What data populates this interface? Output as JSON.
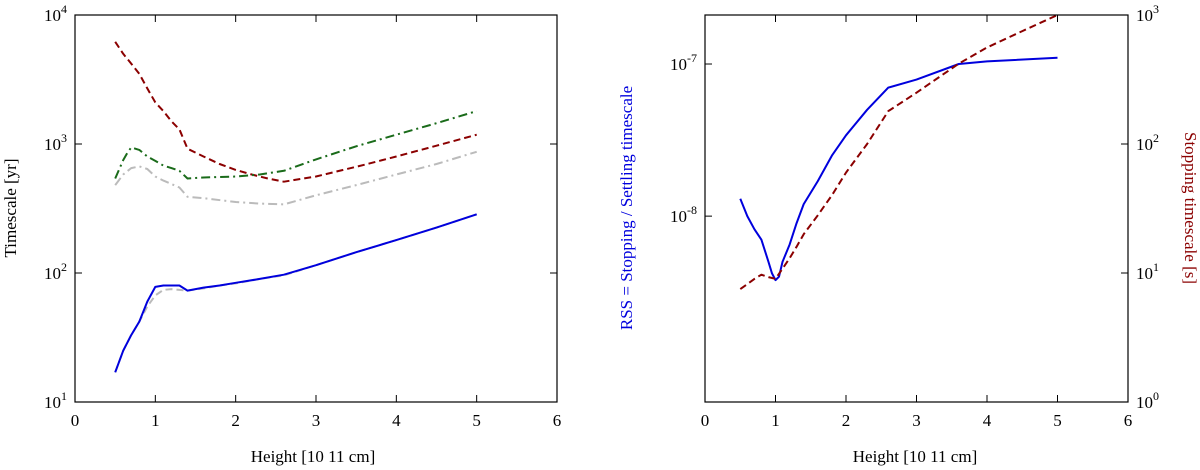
{
  "chart_data": [
    {
      "type": "line",
      "title": "",
      "xlabel": "Height [10 11 cm]",
      "ylabel": "Timescale [yr]",
      "xlim": [
        0,
        6
      ],
      "ylim": [
        10,
        10000
      ],
      "yscale": "log",
      "x_ticks": [
        "0",
        "1",
        "2",
        "3",
        "4",
        "5",
        "6"
      ],
      "y_ticks": [
        {
          "base": "10",
          "exp": "1",
          "value": 10
        },
        {
          "base": "10",
          "exp": "2",
          "value": 100
        },
        {
          "base": "10",
          "exp": "3",
          "value": 1000
        },
        {
          "base": "10",
          "exp": "4",
          "value": 10000
        }
      ],
      "grid": false,
      "series": [
        {
          "style": "dashed",
          "color": "#8b0000",
          "points": [
            [
              0.5,
              6200
            ],
            [
              0.6,
              5000
            ],
            [
              0.7,
              4200
            ],
            [
              0.8,
              3500
            ],
            [
              0.9,
              2700
            ],
            [
              1.0,
              2100
            ],
            [
              1.1,
              1800
            ],
            [
              1.2,
              1500
            ],
            [
              1.3,
              1300
            ],
            [
              1.4,
              920
            ],
            [
              1.6,
              800
            ],
            [
              1.8,
              700
            ],
            [
              2.0,
              630
            ],
            [
              2.2,
              580
            ],
            [
              2.4,
              540
            ],
            [
              2.6,
              510
            ],
            [
              3.0,
              560
            ],
            [
              3.6,
              690
            ],
            [
              4.0,
              800
            ],
            [
              4.5,
              970
            ],
            [
              5.0,
              1180
            ]
          ]
        },
        {
          "style": "dashdot",
          "color": "#1a6b1a",
          "points": [
            [
              0.5,
              540
            ],
            [
              0.6,
              750
            ],
            [
              0.65,
              850
            ],
            [
              0.7,
              940
            ],
            [
              0.8,
              900
            ],
            [
              0.9,
              800
            ],
            [
              1.0,
              740
            ],
            [
              1.1,
              680
            ],
            [
              1.2,
              650
            ],
            [
              1.3,
              620
            ],
            [
              1.4,
              540
            ],
            [
              1.6,
              550
            ],
            [
              2.0,
              560
            ],
            [
              2.3,
              580
            ],
            [
              2.6,
              620
            ],
            [
              3.0,
              760
            ],
            [
              3.5,
              960
            ],
            [
              4.0,
              1180
            ],
            [
              4.5,
              1450
            ],
            [
              5.0,
              1800
            ]
          ]
        },
        {
          "style": "dashdot",
          "color": "#bbbbbb",
          "points": [
            [
              0.5,
              480
            ],
            [
              0.6,
              580
            ],
            [
              0.7,
              650
            ],
            [
              0.8,
              670
            ],
            [
              0.9,
              640
            ],
            [
              1.0,
              560
            ],
            [
              1.1,
              520
            ],
            [
              1.2,
              490
            ],
            [
              1.3,
              460
            ],
            [
              1.4,
              390
            ],
            [
              1.6,
              380
            ],
            [
              2.0,
              355
            ],
            [
              2.3,
              345
            ],
            [
              2.6,
              340
            ],
            [
              3.0,
              400
            ],
            [
              3.5,
              480
            ],
            [
              4.0,
              580
            ],
            [
              4.5,
              700
            ],
            [
              5.0,
              870
            ]
          ]
        },
        {
          "style": "dashed",
          "color": "#bbbbbb",
          "points": [
            [
              0.5,
              17
            ],
            [
              0.6,
              25
            ],
            [
              0.7,
              33
            ],
            [
              0.8,
              42
            ],
            [
              0.9,
              55
            ],
            [
              1.0,
              67
            ],
            [
              1.1,
              74
            ],
            [
              1.2,
              75
            ],
            [
              1.3,
              74
            ],
            [
              1.4,
              73
            ],
            [
              1.6,
              76
            ],
            [
              1.8,
              80
            ],
            [
              2.0,
              83
            ],
            [
              2.3,
              90
            ],
            [
              2.6,
              96
            ],
            [
              3.0,
              115
            ],
            [
              3.5,
              145
            ],
            [
              4.0,
              180
            ],
            [
              4.5,
              225
            ],
            [
              5.0,
              285
            ]
          ]
        },
        {
          "style": "solid",
          "color": "#0000dd",
          "points": [
            [
              0.5,
              17
            ],
            [
              0.6,
              25
            ],
            [
              0.7,
              33
            ],
            [
              0.8,
              42
            ],
            [
              0.9,
              60
            ],
            [
              1.0,
              78
            ],
            [
              1.1,
              80
            ],
            [
              1.2,
              80
            ],
            [
              1.3,
              80
            ],
            [
              1.4,
              73
            ],
            [
              1.6,
              77
            ],
            [
              1.8,
              80
            ],
            [
              2.0,
              84
            ],
            [
              2.3,
              90
            ],
            [
              2.6,
              97
            ],
            [
              3.0,
              115
            ],
            [
              3.5,
              145
            ],
            [
              4.0,
              180
            ],
            [
              4.5,
              225
            ],
            [
              5.0,
              285
            ]
          ]
        }
      ]
    },
    {
      "type": "line",
      "title": "",
      "xlabel": "Height [10 11 cm]",
      "ylabel_left": "RSS = Stopping / Settling timescale",
      "ylabel_right": "Stopping timescale [s]",
      "xlim": [
        0,
        6
      ],
      "ylim_left": [
        6e-10,
        2.1e-07
      ],
      "ylim_right": [
        1,
        1000
      ],
      "yscale": "log",
      "x_ticks": [
        "0",
        "1",
        "2",
        "3",
        "4",
        "5",
        "6"
      ],
      "y_ticks_left": [
        {
          "base": "10",
          "exp": "-8",
          "value": 1e-08
        },
        {
          "base": "10",
          "exp": "-7",
          "value": 1e-07
        }
      ],
      "y_ticks_right": [
        {
          "base": "10",
          "exp": "0",
          "value": 1
        },
        {
          "base": "10",
          "exp": "1",
          "value": 10
        },
        {
          "base": "10",
          "exp": "2",
          "value": 100
        },
        {
          "base": "10",
          "exp": "3",
          "value": 1000
        }
      ],
      "grid": false,
      "series": [
        {
          "axis": "left",
          "style": "solid",
          "color": "#0000dd",
          "points": [
            [
              0.5,
              1.3e-08
            ],
            [
              0.6,
              1e-08
            ],
            [
              0.7,
              8.2e-09
            ],
            [
              0.8,
              7e-09
            ],
            [
              0.9,
              5e-09
            ],
            [
              0.95,
              4.2e-09
            ],
            [
              1.0,
              3.8e-09
            ],
            [
              1.05,
              4e-09
            ],
            [
              1.1,
              5e-09
            ],
            [
              1.2,
              6.5e-09
            ],
            [
              1.3,
              9e-09
            ],
            [
              1.4,
              1.2e-08
            ],
            [
              1.6,
              1.7e-08
            ],
            [
              1.8,
              2.5e-08
            ],
            [
              2.0,
              3.4e-08
            ],
            [
              2.3,
              5e-08
            ],
            [
              2.6,
              7e-08
            ],
            [
              3.0,
              7.9e-08
            ],
            [
              3.6,
              1e-07
            ],
            [
              4.0,
              1.04e-07
            ],
            [
              5.0,
              1.1e-07
            ]
          ]
        },
        {
          "axis": "right",
          "style": "dashed",
          "color": "#8b0000",
          "points": [
            [
              0.5,
              7.5
            ],
            [
              0.6,
              8.2
            ],
            [
              0.7,
              9.0
            ],
            [
              0.8,
              9.7
            ],
            [
              0.9,
              9.3
            ],
            [
              1.0,
              9.0
            ],
            [
              1.1,
              10.8
            ],
            [
              1.2,
              13.0
            ],
            [
              1.3,
              16.0
            ],
            [
              1.4,
              20.0
            ],
            [
              1.6,
              28.0
            ],
            [
              1.8,
              40.0
            ],
            [
              2.0,
              60.0
            ],
            [
              2.3,
              100.0
            ],
            [
              2.6,
              180.0
            ],
            [
              3.0,
              250.0
            ],
            [
              3.6,
              420.0
            ],
            [
              4.0,
              560.0
            ],
            [
              4.5,
              750.0
            ],
            [
              5.0,
              1000.0
            ]
          ]
        }
      ]
    }
  ]
}
